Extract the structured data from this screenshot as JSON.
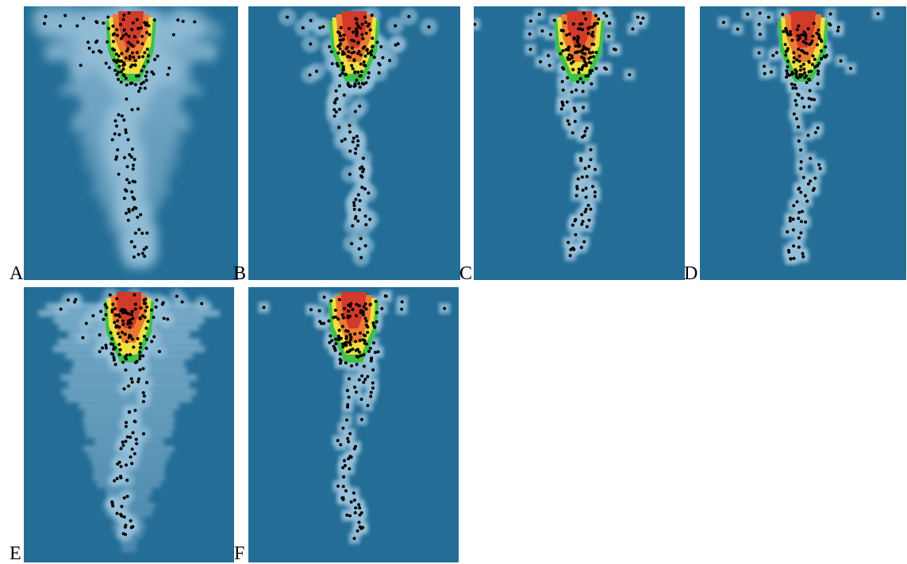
{
  "figure": {
    "panels": [
      {
        "letter": "A",
        "style": "wide"
      },
      {
        "letter": "B",
        "style": "medium"
      },
      {
        "letter": "C",
        "style": "boxy"
      },
      {
        "letter": "D",
        "style": "sparse"
      },
      {
        "letter": "E",
        "style": "banded"
      },
      {
        "letter": "F",
        "style": "boxy"
      }
    ],
    "colors": {
      "background": "#236d96",
      "halo": "#b8d8ec",
      "points": "#000000",
      "core_red": "#d23a2a",
      "core_orange": "#ee7a30",
      "core_yellow": "#f0e040",
      "core_green": "#3dc24a"
    }
  }
}
